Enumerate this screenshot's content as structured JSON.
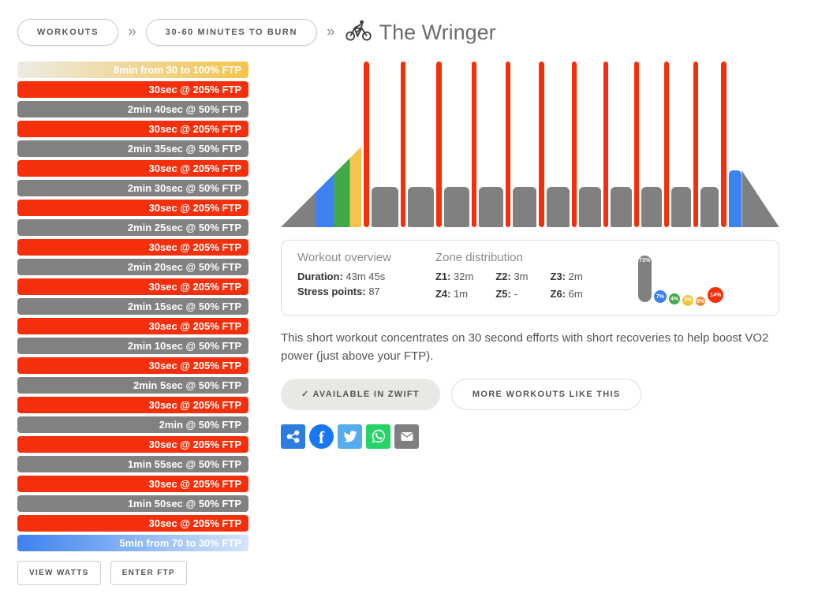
{
  "breadcrumb": {
    "workouts": "WORKOUTS",
    "collection": "30-60 MINUTES TO BURN",
    "separator": "»"
  },
  "title": "The Wringer",
  "intervals": [
    {
      "label": "8min from 30 to 100% FTP",
      "type": "rampup"
    },
    {
      "label": "30sec @ 205% FTP",
      "type": "work"
    },
    {
      "label": "2min 40sec @ 50% FTP",
      "type": "recovery"
    },
    {
      "label": "30sec @ 205% FTP",
      "type": "work"
    },
    {
      "label": "2min 35sec @ 50% FTP",
      "type": "recovery"
    },
    {
      "label": "30sec @ 205% FTP",
      "type": "work"
    },
    {
      "label": "2min 30sec @ 50% FTP",
      "type": "recovery"
    },
    {
      "label": "30sec @ 205% FTP",
      "type": "work"
    },
    {
      "label": "2min 25sec @ 50% FTP",
      "type": "recovery"
    },
    {
      "label": "30sec @ 205% FTP",
      "type": "work"
    },
    {
      "label": "2min 20sec @ 50% FTP",
      "type": "recovery"
    },
    {
      "label": "30sec @ 205% FTP",
      "type": "work"
    },
    {
      "label": "2min 15sec @ 50% FTP",
      "type": "recovery"
    },
    {
      "label": "30sec @ 205% FTP",
      "type": "work"
    },
    {
      "label": "2min 10sec @ 50% FTP",
      "type": "recovery"
    },
    {
      "label": "30sec @ 205% FTP",
      "type": "work"
    },
    {
      "label": "2min 5sec @ 50% FTP",
      "type": "recovery"
    },
    {
      "label": "30sec @ 205% FTP",
      "type": "work"
    },
    {
      "label": "2min @ 50% FTP",
      "type": "recovery"
    },
    {
      "label": "30sec @ 205% FTP",
      "type": "work"
    },
    {
      "label": "1min 55sec @ 50% FTP",
      "type": "recovery"
    },
    {
      "label": "30sec @ 205% FTP",
      "type": "work"
    },
    {
      "label": "1min 50sec @ 50% FTP",
      "type": "recovery"
    },
    {
      "label": "30sec @ 205% FTP",
      "type": "work"
    },
    {
      "label": "5min from 70 to 30% FTP",
      "type": "rampdown"
    }
  ],
  "overview": {
    "heading": "Workout overview",
    "duration_label": "Duration:",
    "duration_value": "43m 45s",
    "stress_label": "Stress points:",
    "stress_value": "87"
  },
  "zones": {
    "heading": "Zone distribution",
    "items": [
      {
        "label": "Z1",
        "value": "32m"
      },
      {
        "label": "Z2",
        "value": "3m"
      },
      {
        "label": "Z3",
        "value": "2m"
      },
      {
        "label": "Z4",
        "value": "1m"
      },
      {
        "label": "Z5",
        "value": "-"
      },
      {
        "label": "Z6",
        "value": "6m"
      }
    ]
  },
  "zone_chart": [
    {
      "zone": "Z1",
      "label": "73%",
      "pct": 73,
      "color": "#808080"
    },
    {
      "zone": "Z2",
      "label": "7%",
      "pct": 7,
      "color": "#3d82f0"
    },
    {
      "zone": "Z3",
      "label": "4%",
      "pct": 4,
      "color": "#42a948"
    },
    {
      "zone": "Z4",
      "label": "3%",
      "pct": 3,
      "color": "#f2c43d"
    },
    {
      "zone": "Z5",
      "label": "0%",
      "pct": 0,
      "color": "#f28c38"
    },
    {
      "zone": "Z6",
      "label": "14%",
      "pct": 14,
      "color": "#f4300c"
    }
  ],
  "description": "This short workout concentrates on 30 second efforts with short recoveries to help boost VO2 power (just above your FTP).",
  "buttons": {
    "view_watts": "VIEW WATTS",
    "enter_ftp": "ENTER FTP",
    "available": "✓ AVAILABLE IN ZWIFT",
    "more": "MORE WORKOUTS LIKE THIS"
  },
  "share_icons": [
    "share",
    "facebook",
    "twitter",
    "whatsapp",
    "email"
  ],
  "colors": {
    "work_red": "#f4300c",
    "recovery_gray": "#808080",
    "z2_blue": "#3d82f0",
    "z3_green": "#42a948",
    "z4_yellow": "#f4c44c",
    "z5_orange": "#f28c38"
  },
  "chart_data": {
    "type": "workout-profile",
    "ftp_axis_max_pct": 205,
    "total_duration_s": 2625,
    "segments": [
      {
        "kind": "rampup",
        "duration_s": 480,
        "from_pct": 30,
        "to_pct": 100
      },
      {
        "kind": "work",
        "duration_s": 30,
        "pct": 205
      },
      {
        "kind": "recovery",
        "duration_s": 160,
        "pct": 50
      },
      {
        "kind": "work",
        "duration_s": 30,
        "pct": 205
      },
      {
        "kind": "recovery",
        "duration_s": 155,
        "pct": 50
      },
      {
        "kind": "work",
        "duration_s": 30,
        "pct": 205
      },
      {
        "kind": "recovery",
        "duration_s": 150,
        "pct": 50
      },
      {
        "kind": "work",
        "duration_s": 30,
        "pct": 205
      },
      {
        "kind": "recovery",
        "duration_s": 145,
        "pct": 50
      },
      {
        "kind": "work",
        "duration_s": 30,
        "pct": 205
      },
      {
        "kind": "recovery",
        "duration_s": 140,
        "pct": 50
      },
      {
        "kind": "work",
        "duration_s": 30,
        "pct": 205
      },
      {
        "kind": "recovery",
        "duration_s": 135,
        "pct": 50
      },
      {
        "kind": "work",
        "duration_s": 30,
        "pct": 205
      },
      {
        "kind": "recovery",
        "duration_s": 130,
        "pct": 50
      },
      {
        "kind": "work",
        "duration_s": 30,
        "pct": 205
      },
      {
        "kind": "recovery",
        "duration_s": 125,
        "pct": 50
      },
      {
        "kind": "work",
        "duration_s": 30,
        "pct": 205
      },
      {
        "kind": "recovery",
        "duration_s": 120,
        "pct": 50
      },
      {
        "kind": "work",
        "duration_s": 30,
        "pct": 205
      },
      {
        "kind": "recovery",
        "duration_s": 115,
        "pct": 50
      },
      {
        "kind": "work",
        "duration_s": 30,
        "pct": 205
      },
      {
        "kind": "recovery",
        "duration_s": 110,
        "pct": 50
      },
      {
        "kind": "work",
        "duration_s": 30,
        "pct": 205
      },
      {
        "kind": "rampdown",
        "duration_s": 300,
        "from_pct": 70,
        "to_pct": 30
      }
    ]
  }
}
